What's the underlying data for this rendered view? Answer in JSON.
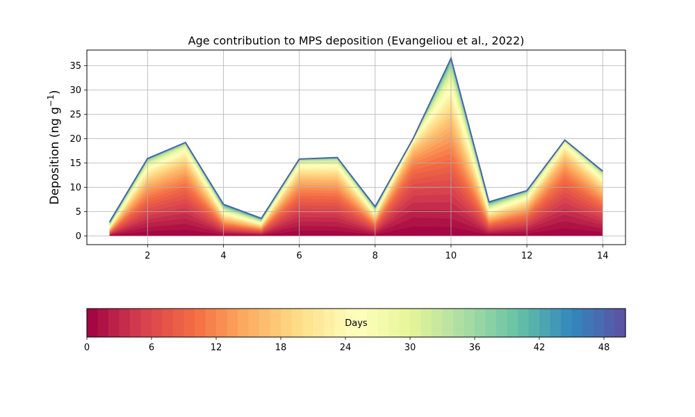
{
  "chart_data": {
    "type": "area",
    "title": "Age contribution to MPS deposition (Evangeliou et al., 2022)",
    "xlabel": "",
    "ylabel": "Deposition (ng g",
    "ylabel_superscript": "−1",
    "ylabel_suffix": ")",
    "x": [
      1,
      2,
      3,
      4,
      5,
      6,
      7,
      8,
      9,
      10,
      11,
      12,
      13,
      14
    ],
    "total_deposition": [
      2.9,
      15.9,
      19.2,
      6.5,
      3.6,
      15.8,
      16.1,
      6.0,
      20.0,
      36.5,
      7.0,
      9.3,
      19.7,
      13.3
    ],
    "xlim": [
      0.4,
      14.6
    ],
    "ylim": [
      -1.8,
      38.2
    ],
    "xticks": [
      2,
      4,
      6,
      8,
      10,
      12,
      14
    ],
    "yticks": [
      0,
      5,
      10,
      15,
      20,
      25,
      30,
      35
    ],
    "grid": true,
    "stack_layers": 50,
    "colormap": "Spectral",
    "colorbar": {
      "label": "Days",
      "ticks": [
        0,
        6,
        12,
        18,
        24,
        30,
        36,
        42,
        48
      ],
      "range": [
        0,
        50
      ]
    }
  }
}
